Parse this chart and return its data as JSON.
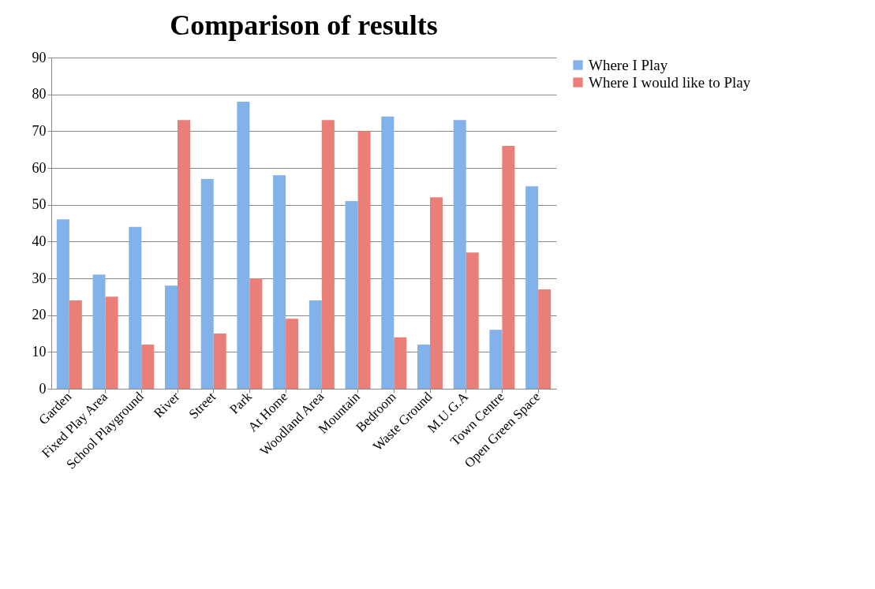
{
  "chart_data": {
    "type": "bar",
    "title": "Comparison of results",
    "categories": [
      "Garden",
      "Fixed Play Area",
      "School Playground",
      "River",
      "Street",
      "Park",
      "At Home",
      "Woodland Area",
      "Mountain",
      "Bedroom",
      "Waste Ground",
      "M.U.G.A",
      "Town Centre",
      "Open Green Space"
    ],
    "series": [
      {
        "name": "Where I Play",
        "color": "#82b2ea",
        "values": [
          46,
          31,
          44,
          28,
          57,
          78,
          58,
          24,
          51,
          74,
          12,
          73,
          16,
          55
        ]
      },
      {
        "name": "Where I would like to Play",
        "color": "#ea7f7a",
        "values": [
          24,
          25,
          12,
          73,
          15,
          30,
          19,
          73,
          70,
          14,
          52,
          37,
          66,
          27
        ]
      }
    ],
    "ylim": [
      0,
      90
    ],
    "yticks": [
      0,
      10,
      20,
      30,
      40,
      50,
      60,
      70,
      80,
      90
    ],
    "grid": "y",
    "legend": "right"
  }
}
